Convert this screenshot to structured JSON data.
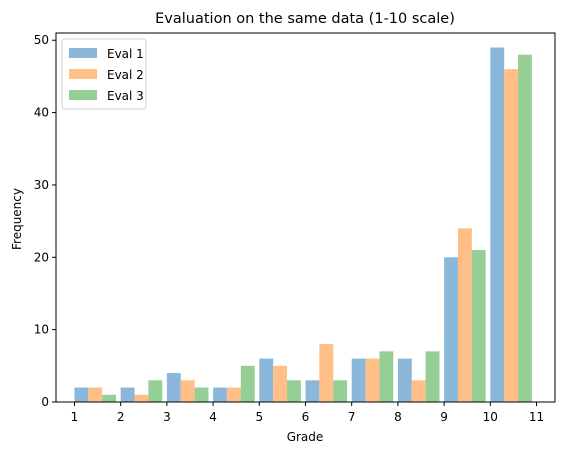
{
  "chart_data": {
    "type": "bar",
    "title": "Evaluation on the same data (1-10 scale)",
    "xlabel": "Grade",
    "ylabel": "Frequency",
    "categories": [
      "1",
      "2",
      "3",
      "4",
      "5",
      "6",
      "7",
      "8",
      "9",
      "10"
    ],
    "x_ticks": [
      "1",
      "2",
      "3",
      "4",
      "5",
      "6",
      "7",
      "8",
      "9",
      "10",
      "11"
    ],
    "y_ticks": [
      "0",
      "10",
      "20",
      "30",
      "40",
      "50"
    ],
    "xlim": [
      0.6,
      11.4
    ],
    "ylim": [
      0,
      51
    ],
    "grid": false,
    "legend_position": "top-left",
    "series": [
      {
        "name": "Eval 1",
        "color": "#8bb8da",
        "values": [
          2,
          2,
          4,
          2,
          6,
          3,
          6,
          6,
          20,
          49
        ]
      },
      {
        "name": "Eval 2",
        "color": "#ffbf87",
        "values": [
          2,
          1,
          3,
          2,
          5,
          8,
          6,
          3,
          24,
          46
        ]
      },
      {
        "name": "Eval 3",
        "color": "#95cf95",
        "values": [
          1,
          3,
          2,
          5,
          3,
          3,
          7,
          7,
          21,
          48
        ]
      }
    ]
  }
}
